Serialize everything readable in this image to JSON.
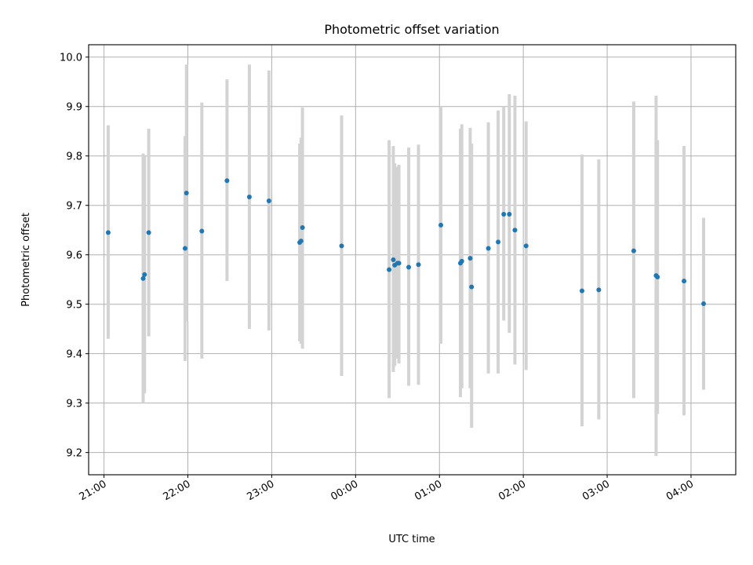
{
  "chart_data": {
    "type": "scatter",
    "title": "Photometric offset variation",
    "xlabel": "UTC time",
    "ylabel": "Photometric offset",
    "x_unit": "UTC time (HH:MM)",
    "x_ticks": [
      "21:00",
      "22:00",
      "23:00",
      "00:00",
      "01:00",
      "02:00",
      "03:00",
      "04:00"
    ],
    "y_ticks": [
      "9.2",
      "9.3",
      "9.4",
      "9.5",
      "9.6",
      "9.7",
      "9.8",
      "9.9",
      "10.0"
    ],
    "xlim": [
      "20:49",
      "04:32"
    ],
    "ylim": [
      9.155,
      10.025
    ],
    "grid": true,
    "colors": {
      "points": "#1f77b4",
      "errorbars": "#d3d3d3",
      "grid": "#b0b0b0"
    },
    "points": [
      {
        "t": "21:03",
        "y": 9.645,
        "lo": 9.43,
        "hi": 9.862
      },
      {
        "t": "21:28",
        "y": 9.552,
        "lo": 9.3,
        "hi": 9.805
      },
      {
        "t": "21:29",
        "y": 9.56,
        "lo": 9.32,
        "hi": 9.8
      },
      {
        "t": "21:32",
        "y": 9.645,
        "lo": 9.435,
        "hi": 9.855
      },
      {
        "t": "21:58",
        "y": 9.613,
        "lo": 9.385,
        "hi": 9.84
      },
      {
        "t": "21:59",
        "y": 9.725,
        "lo": 9.465,
        "hi": 9.985
      },
      {
        "t": "22:10",
        "y": 9.648,
        "lo": 9.39,
        "hi": 9.908
      },
      {
        "t": "22:28",
        "y": 9.75,
        "lo": 9.547,
        "hi": 9.955
      },
      {
        "t": "22:44",
        "y": 9.717,
        "lo": 9.45,
        "hi": 9.985
      },
      {
        "t": "22:58",
        "y": 9.709,
        "lo": 9.447,
        "hi": 9.973
      },
      {
        "t": "23:20",
        "y": 9.625,
        "lo": 9.425,
        "hi": 9.825
      },
      {
        "t": "23:21",
        "y": 9.628,
        "lo": 9.42,
        "hi": 9.837
      },
      {
        "t": "23:22",
        "y": 9.655,
        "lo": 9.41,
        "hi": 9.898
      },
      {
        "t": "23:50",
        "y": 9.618,
        "lo": 9.355,
        "hi": 9.882
      },
      {
        "t": "00:24",
        "y": 9.57,
        "lo": 9.31,
        "hi": 9.832
      },
      {
        "t": "00:27",
        "y": 9.59,
        "lo": 9.363,
        "hi": 9.82
      },
      {
        "t": "00:28",
        "y": 9.579,
        "lo": 9.375,
        "hi": 9.785
      },
      {
        "t": "00:30",
        "y": 9.583,
        "lo": 9.39,
        "hi": 9.778
      },
      {
        "t": "00:31",
        "y": 9.583,
        "lo": 9.38,
        "hi": 9.782
      },
      {
        "t": "00:38",
        "y": 9.575,
        "lo": 9.335,
        "hi": 9.817
      },
      {
        "t": "00:45",
        "y": 9.58,
        "lo": 9.337,
        "hi": 9.823
      },
      {
        "t": "01:01",
        "y": 9.66,
        "lo": 9.42,
        "hi": 9.9
      },
      {
        "t": "01:15",
        "y": 9.583,
        "lo": 9.312,
        "hi": 9.855
      },
      {
        "t": "01:16",
        "y": 9.587,
        "lo": 9.33,
        "hi": 9.864
      },
      {
        "t": "01:22",
        "y": 9.593,
        "lo": 9.33,
        "hi": 9.857
      },
      {
        "t": "01:23",
        "y": 9.535,
        "lo": 9.25,
        "hi": 9.825
      },
      {
        "t": "01:35",
        "y": 9.613,
        "lo": 9.36,
        "hi": 9.868
      },
      {
        "t": "01:42",
        "y": 9.626,
        "lo": 9.36,
        "hi": 9.892
      },
      {
        "t": "01:46",
        "y": 9.682,
        "lo": 9.467,
        "hi": 9.9
      },
      {
        "t": "01:50",
        "y": 9.682,
        "lo": 9.442,
        "hi": 9.925
      },
      {
        "t": "01:54",
        "y": 9.65,
        "lo": 9.378,
        "hi": 9.922
      },
      {
        "t": "02:02",
        "y": 9.618,
        "lo": 9.367,
        "hi": 9.87
      },
      {
        "t": "02:42",
        "y": 9.527,
        "lo": 9.253,
        "hi": 9.803
      },
      {
        "t": "02:54",
        "y": 9.529,
        "lo": 9.267,
        "hi": 9.793
      },
      {
        "t": "03:19",
        "y": 9.608,
        "lo": 9.31,
        "hi": 9.91
      },
      {
        "t": "03:35",
        "y": 9.558,
        "lo": 9.193,
        "hi": 9.922
      },
      {
        "t": "03:36",
        "y": 9.555,
        "lo": 9.278,
        "hi": 9.832
      },
      {
        "t": "03:55",
        "y": 9.547,
        "lo": 9.275,
        "hi": 9.82
      },
      {
        "t": "04:09",
        "y": 9.501,
        "lo": 9.327,
        "hi": 9.675
      }
    ]
  }
}
